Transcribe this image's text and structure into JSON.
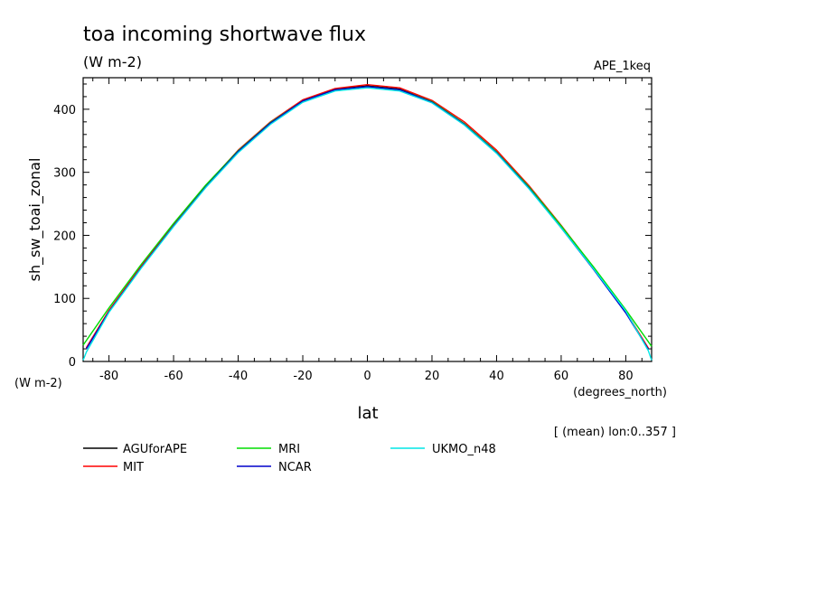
{
  "chart_data": {
    "type": "line",
    "title": "toa incoming shortwave flux",
    "units": "(W m-2)",
    "experiment": "APE_1keq",
    "xlabel": "lat",
    "x_units": "(degrees_north)",
    "ylabel": "sh_sw_toai_zonal",
    "y_units": "(W m-2)",
    "note": "[ (mean) lon:0..357 ]",
    "xlim": [
      -88,
      88
    ],
    "ylim": [
      0,
      450
    ],
    "x_ticks": [
      -80,
      -60,
      -40,
      -20,
      0,
      20,
      40,
      60,
      80
    ],
    "y_ticks": [
      0,
      100,
      200,
      300,
      400
    ],
    "x_tick_labels": [
      "-80",
      "-60",
      "-40",
      "-20",
      "0",
      "20",
      "40",
      "60",
      "80"
    ],
    "y_tick_labels": [
      "0",
      "100",
      "200",
      "300",
      "400"
    ],
    "grid": false,
    "legend_placement": "below",
    "series": [
      {
        "name": "AGUforAPE",
        "color": "#000000",
        "x": [
          -87,
          -80,
          -70,
          -60,
          -50,
          -40,
          -30,
          -20,
          -10,
          0,
          10,
          20,
          30,
          40,
          50,
          60,
          70,
          80,
          87
        ],
        "y": [
          21,
          80,
          150,
          216,
          278,
          334,
          379,
          414,
          432,
          437,
          432,
          412,
          377,
          332,
          276,
          213,
          147,
          78,
          20
        ]
      },
      {
        "name": "MIT",
        "color": "#ff0000",
        "x": [
          -87,
          -80,
          -70,
          -60,
          -50,
          -40,
          -30,
          -20,
          -10,
          0,
          10,
          20,
          30,
          40,
          50,
          60,
          70,
          80,
          87
        ],
        "y": [
          22,
          81,
          151,
          217,
          279,
          335,
          380,
          415,
          433,
          439,
          434,
          414,
          380,
          335,
          279,
          216,
          149,
          79,
          21
        ]
      },
      {
        "name": "MRI",
        "color": "#00dd00",
        "x": [
          -88,
          -80,
          -70,
          -60,
          -50,
          -40,
          -30,
          -20,
          -10,
          0,
          10,
          20,
          30,
          40,
          50,
          60,
          70,
          80,
          88
        ],
        "y": [
          26,
          85,
          154,
          219,
          280,
          334,
          379,
          413,
          431,
          436,
          431,
          412,
          377,
          332,
          277,
          215,
          150,
          82,
          24
        ]
      },
      {
        "name": "NCAR",
        "color": "#0000cc",
        "x": [
          -87,
          -80,
          -70,
          -60,
          -50,
          -40,
          -30,
          -20,
          -10,
          0,
          10,
          20,
          30,
          40,
          50,
          60,
          70,
          80,
          87
        ],
        "y": [
          20,
          79,
          149,
          215,
          277,
          333,
          378,
          413,
          431,
          436,
          431,
          411,
          376,
          331,
          275,
          212,
          146,
          77,
          19
        ]
      },
      {
        "name": "UKMO_n48",
        "color": "#00e5e5",
        "x": [
          -88,
          -87,
          -80,
          -70,
          -60,
          -50,
          -40,
          -30,
          -20,
          -10,
          0,
          10,
          20,
          30,
          40,
          50,
          60,
          70,
          80,
          87,
          88
        ],
        "y": [
          2,
          15,
          78,
          148,
          214,
          276,
          331,
          376,
          411,
          429,
          434,
          429,
          410,
          375,
          330,
          274,
          212,
          147,
          80,
          17,
          2
        ]
      }
    ]
  }
}
